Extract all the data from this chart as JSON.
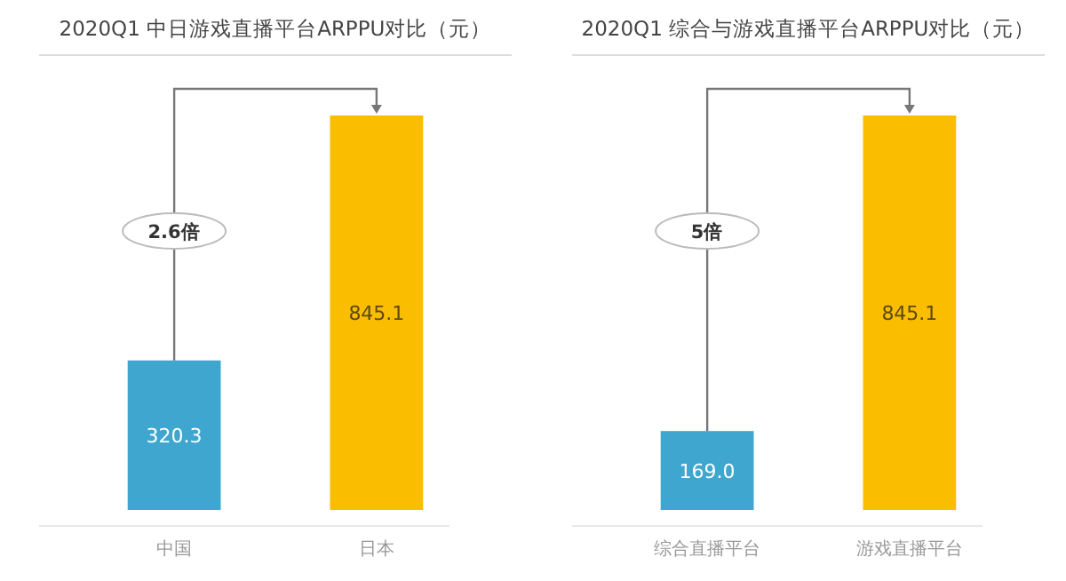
{
  "chart_data": [
    {
      "type": "bar",
      "title": "2020Q1 中日游戏直播平台ARPPU对比（元）",
      "categories": [
        "中国",
        "日本"
      ],
      "values": [
        320.3,
        845.1
      ],
      "colors": [
        "#3fa6cf",
        "#fbbd00"
      ],
      "data_labels": true,
      "annotations": [
        "2.6倍"
      ]
    },
    {
      "type": "bar",
      "title": "2020Q1 综合与游戏直播平台ARPPU对比（元）",
      "categories": [
        "综合直播平台",
        "游戏直播平台"
      ],
      "values": [
        169.0,
        845.1
      ],
      "colors": [
        "#3fa6cf",
        "#fbbd00"
      ],
      "value_labels": [
        "169.0",
        "845.1"
      ],
      "annotations": [
        "5倍"
      ]
    }
  ]
}
